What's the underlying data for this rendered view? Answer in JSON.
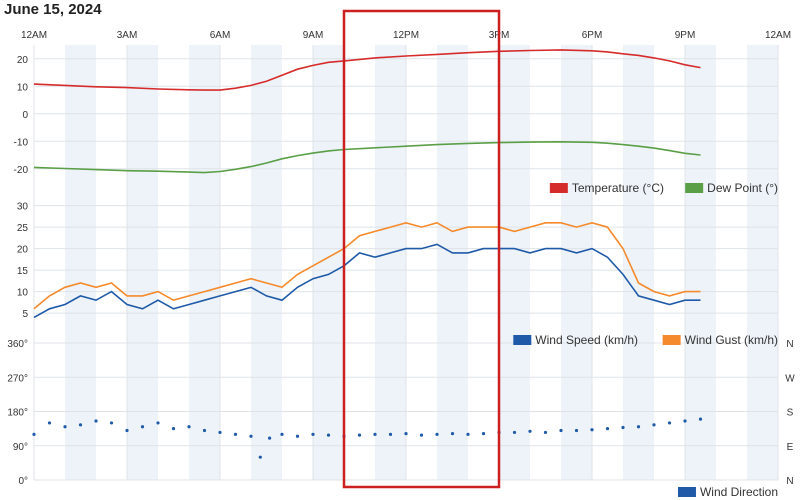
{
  "title": "June 15, 2024",
  "x_ticks": [
    "12AM",
    "3AM",
    "6AM",
    "9AM",
    "12PM",
    "3PM",
    "6PM",
    "9PM",
    "12AM"
  ],
  "chart_data": [
    {
      "type": "line",
      "x_unit": "hour of day",
      "xlim": [
        0,
        24
      ],
      "ylim": [
        -23,
        25
      ],
      "yticks": [
        20,
        10,
        0,
        -10,
        -20
      ],
      "grid": true,
      "legend": "bottom-right",
      "series": [
        {
          "name": "Temperature (°C)",
          "color": "#d62b2b",
          "x": [
            0,
            1,
            2,
            3,
            4,
            5,
            5.5,
            6,
            6.5,
            7,
            7.5,
            8,
            8.5,
            9,
            9.5,
            10,
            11,
            12,
            13,
            14,
            15,
            16,
            17,
            18,
            18.5,
            19,
            19.5,
            20,
            20.5,
            21,
            21.5
          ],
          "y": [
            10.8,
            10.3,
            9.8,
            9.5,
            9.0,
            8.7,
            8.6,
            8.6,
            9.3,
            10.3,
            11.8,
            14.0,
            16.2,
            17.6,
            18.7,
            19.2,
            20.3,
            21.0,
            21.6,
            22.2,
            22.7,
            23.0,
            23.2,
            22.9,
            22.5,
            21.8,
            21.2,
            20.3,
            19.2,
            17.8,
            16.8
          ]
        },
        {
          "name": "Dew Point (°)",
          "color": "#5a9e46",
          "x": [
            0,
            1,
            2,
            3,
            4,
            5,
            5.5,
            6,
            6.5,
            7,
            7.5,
            8,
            8.5,
            9,
            9.5,
            10,
            11,
            12,
            13,
            14,
            15,
            16,
            17,
            18,
            18.5,
            19,
            19.5,
            20,
            20.5,
            21,
            21.5
          ],
          "y": [
            -19.5,
            -19.9,
            -20.3,
            -20.7,
            -20.9,
            -21.2,
            -21.4,
            -21.0,
            -20.2,
            -19.2,
            -17.9,
            -16.4,
            -15.2,
            -14.3,
            -13.5,
            -13.0,
            -12.4,
            -11.8,
            -11.2,
            -10.8,
            -10.5,
            -10.3,
            -10.2,
            -10.4,
            -10.7,
            -11.2,
            -11.8,
            -12.5,
            -13.4,
            -14.4,
            -15.0
          ]
        }
      ]
    },
    {
      "type": "line",
      "x_unit": "hour of day",
      "xlim": [
        0,
        24
      ],
      "ylim": [
        2,
        32
      ],
      "yticks": [
        30,
        25,
        20,
        15,
        10,
        5
      ],
      "grid": true,
      "legend": "bottom-right",
      "series": [
        {
          "name": "Wind Speed (km/h)",
          "color": "#1f5aa8",
          "x": [
            0,
            0.5,
            1,
            1.5,
            2,
            2.5,
            3,
            3.5,
            4,
            4.5,
            5,
            5.5,
            6,
            6.5,
            7,
            7.5,
            8,
            8.5,
            9,
            9.5,
            10,
            10.5,
            11,
            11.5,
            12,
            12.5,
            13,
            13.5,
            14,
            14.5,
            15,
            15.5,
            16,
            16.5,
            17,
            17.5,
            18,
            18.5,
            19,
            19.5,
            20,
            20.5,
            21,
            21.5
          ],
          "y": [
            4,
            6,
            7,
            9,
            8,
            10,
            7,
            6,
            8,
            6,
            7,
            8,
            9,
            10,
            11,
            9,
            8,
            11,
            13,
            14,
            16,
            19,
            18,
            19,
            20,
            20,
            21,
            19,
            19,
            20,
            20,
            20,
            19,
            20,
            20,
            19,
            20,
            18,
            14,
            9,
            8,
            7,
            8,
            8
          ]
        },
        {
          "name": "Wind Gust (km/h)",
          "color": "#f58a2c",
          "x": [
            0,
            0.5,
            1,
            1.5,
            2,
            2.5,
            3,
            3.5,
            4,
            4.5,
            5,
            5.5,
            6,
            6.5,
            7,
            7.5,
            8,
            8.5,
            9,
            9.5,
            10,
            10.5,
            11,
            11.5,
            12,
            12.5,
            13,
            13.5,
            14,
            14.5,
            15,
            15.5,
            16,
            16.5,
            17,
            17.5,
            18,
            18.5,
            19,
            19.5,
            20,
            20.5,
            21,
            21.5
          ],
          "y": [
            6,
            9,
            11,
            12,
            11,
            12,
            9,
            9,
            10,
            8,
            9,
            10,
            11,
            12,
            13,
            12,
            11,
            14,
            16,
            18,
            20,
            23,
            24,
            25,
            26,
            25,
            26,
            24,
            25,
            25,
            25,
            24,
            25,
            26,
            26,
            25,
            26,
            25,
            20,
            12,
            10,
            9,
            10,
            10
          ]
        }
      ]
    },
    {
      "type": "scatter",
      "x_unit": "hour of day",
      "xlim": [
        0,
        24
      ],
      "ylim": [
        0,
        360
      ],
      "yticks": [
        "360°",
        "270°",
        "180°",
        "90°",
        "0°"
      ],
      "right_ticks": [
        "N",
        "W",
        "S",
        "E",
        "N"
      ],
      "grid": true,
      "legend": "bottom-right",
      "series": [
        {
          "name": "Wind Direction",
          "color": "#1f5aa8",
          "x": [
            0,
            0.5,
            1,
            1.5,
            2,
            2.5,
            3,
            3.5,
            4,
            4.5,
            5,
            5.5,
            6,
            6.5,
            7,
            7.3,
            7.6,
            8,
            8.5,
            9,
            9.5,
            10,
            10.5,
            11,
            11.5,
            12,
            12.5,
            13,
            13.5,
            14,
            14.5,
            15,
            15.5,
            16,
            16.5,
            17,
            17.5,
            18,
            18.5,
            19,
            19.5,
            20,
            20.5,
            21,
            21.5
          ],
          "y": [
            120,
            150,
            140,
            145,
            155,
            150,
            130,
            140,
            150,
            135,
            140,
            130,
            125,
            120,
            115,
            60,
            110,
            120,
            115,
            120,
            118,
            115,
            118,
            120,
            120,
            122,
            118,
            120,
            122,
            120,
            122,
            125,
            125,
            128,
            125,
            130,
            130,
            132,
            135,
            138,
            140,
            145,
            150,
            155,
            160
          ]
        }
      ]
    }
  ],
  "legends": [
    {
      "label": "Temperature (°C)",
      "color": "#d62b2b"
    },
    {
      "label": "Dew Point (°)",
      "color": "#5a9e46"
    },
    {
      "label": "Wind Speed (km/h)",
      "color": "#1f5aa8"
    },
    {
      "label": "Wind Gust (km/h)",
      "color": "#f58a2c"
    },
    {
      "label": "Wind Direction",
      "color": "#1f5aa8"
    }
  ],
  "selection_box": {
    "x_start_hour": 10,
    "x_end_hour": 15,
    "color": "#cc1f1f"
  }
}
